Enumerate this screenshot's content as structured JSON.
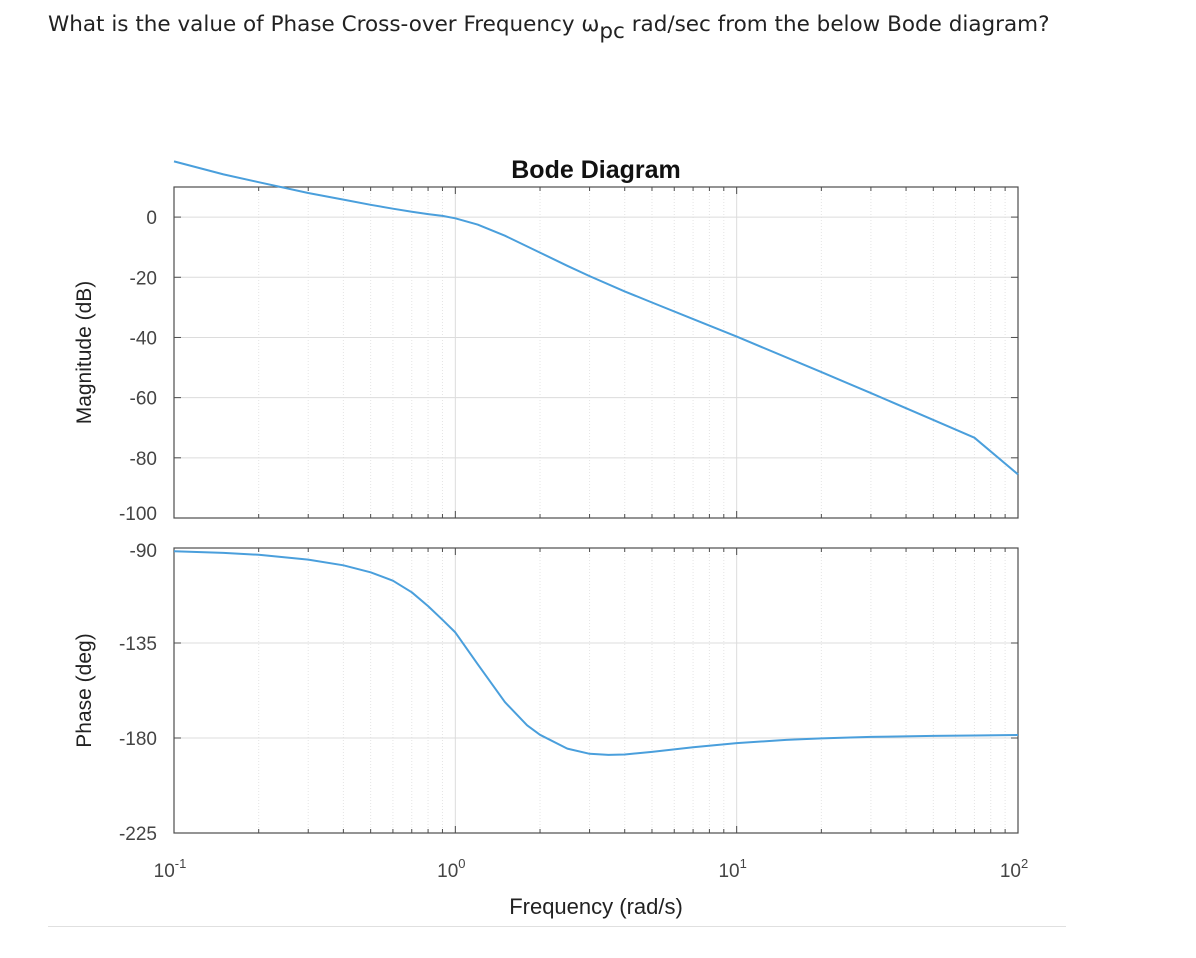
{
  "question": {
    "text_before": "What is the value of Phase Cross-over Frequency ω",
    "subscript": "pc",
    "text_after": " rad/sec from the below Bode diagram?"
  },
  "chart_data": [
    {
      "type": "line",
      "title": "Bode Diagram",
      "xlabel": "Frequency (rad/s)",
      "ylabel": "Magnitude (dB)",
      "xscale": "log",
      "xlim": [
        0.1,
        100
      ],
      "ylim": [
        -100,
        10
      ],
      "yticks": [
        0,
        -20,
        -40,
        -60,
        -80,
        -100
      ],
      "xticks": [
        0.1,
        1,
        10,
        100
      ],
      "xtick_labels": [
        {
          "base": "10",
          "exp": "-1"
        },
        {
          "base": "10",
          "exp": "0"
        },
        {
          "base": "10",
          "exp": "1"
        },
        {
          "base": "10",
          "exp": "2"
        }
      ],
      "grid": true,
      "line_color": "#4a9fdc",
      "series": [
        {
          "x": [
            0.1,
            0.15,
            0.2,
            0.3,
            0.4,
            0.5,
            0.6,
            0.7,
            0.8,
            0.9,
            1.0,
            1.2,
            1.5,
            2.0,
            2.5,
            3.0,
            4.0,
            5.0,
            7.0,
            10,
            20,
            30,
            50,
            70,
            100
          ],
          "y": [
            18.5,
            14.2,
            11.6,
            8.0,
            5.8,
            4.1,
            2.8,
            1.8,
            1.0,
            0.4,
            -0.4,
            -2.5,
            -6.2,
            -11.8,
            -16.2,
            -19.6,
            -24.7,
            -28.4,
            -33.9,
            -39.7,
            -51.5,
            -58.5,
            -67.4,
            -73.3,
            -85.5
          ]
        }
      ]
    },
    {
      "type": "line",
      "xlabel": "Frequency (rad/s)",
      "ylabel": "Phase (deg)",
      "xscale": "log",
      "xlim": [
        0.1,
        100
      ],
      "ylim": [
        -225,
        -90
      ],
      "yticks": [
        -90,
        -135,
        -180,
        -225
      ],
      "xticks": [
        0.1,
        1,
        10,
        100
      ],
      "grid": true,
      "line_color": "#4a9fdc",
      "series": [
        {
          "x": [
            0.1,
            0.15,
            0.2,
            0.3,
            0.4,
            0.5,
            0.6,
            0.7,
            0.8,
            0.9,
            1.0,
            1.2,
            1.5,
            1.8,
            2.0,
            2.5,
            3.0,
            3.5,
            4.0,
            5.0,
            7.0,
            10,
            15,
            20,
            30,
            50,
            70,
            100
          ],
          "y": [
            -91.5,
            -92.3,
            -93.2,
            -95.5,
            -98.2,
            -101.5,
            -105.5,
            -111.0,
            -117.5,
            -124.0,
            -130.0,
            -145.0,
            -163.0,
            -174.0,
            -178.5,
            -185.0,
            -187.5,
            -188.0,
            -187.8,
            -186.6,
            -184.4,
            -182.4,
            -180.9,
            -180.2,
            -179.5,
            -179.0,
            -178.8,
            -178.6
          ]
        }
      ]
    }
  ]
}
